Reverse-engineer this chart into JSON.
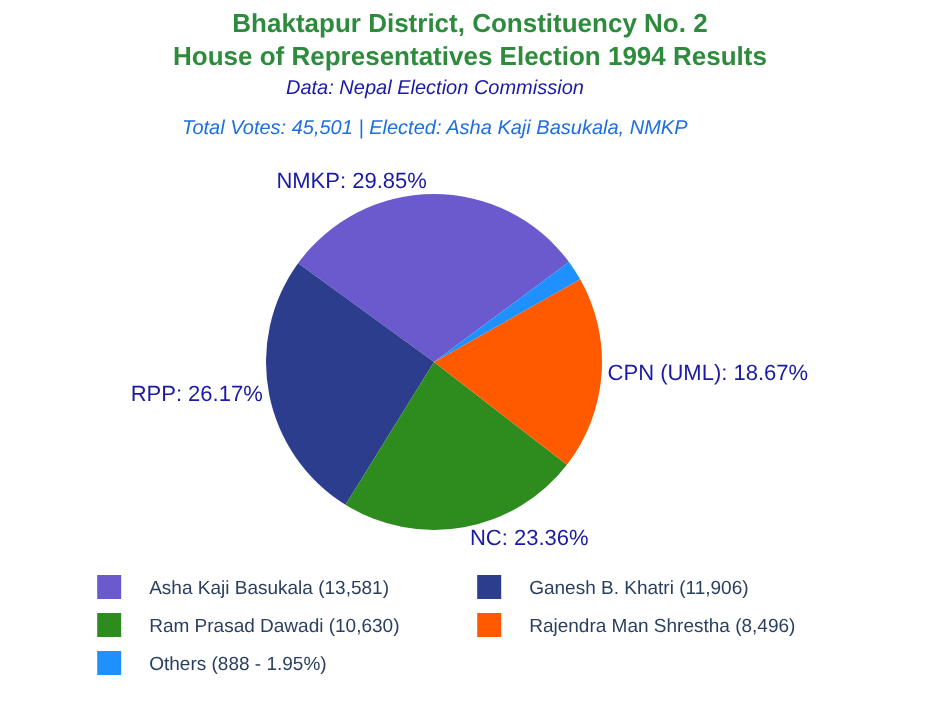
{
  "chart_data": {
    "type": "pie",
    "title": "Bhaktapur District, Constituency No. 2\nHouse of Representatives Election 1994 Results",
    "subtitle": "Data: Nepal Election Commission",
    "annotations": [
      "Total Votes: 45,501 | Elected: Asha Kaji Basukala, NMKP"
    ],
    "categories": [
      "Asha Kaji Basukala (13,581)",
      "Ganesh B. Khatri (11,906)",
      "Ram Prasad Dawadi (10,630)",
      "Rajendra Man Shrestha (8,496)",
      "Others (888 - 1.95%)"
    ],
    "values": [
      29.85,
      26.17,
      23.36,
      18.67,
      1.95
    ],
    "value_labels": [
      "NMKP: 29.85%",
      "RPP: 26.17%",
      "NC: 23.36%",
      "CPN (UML): 18.67%",
      null
    ],
    "colors": [
      "#6a5acd",
      "#2b3d8c",
      "#2e8b1e",
      "#ff5a00",
      "#1e90ff"
    ],
    "legend": "bottom"
  }
}
